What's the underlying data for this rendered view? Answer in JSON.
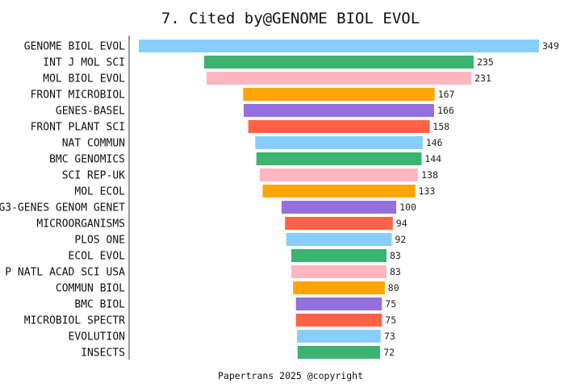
{
  "chart_data": {
    "type": "bar",
    "orientation": "horizontal-funnel",
    "title": "7. Cited by@GENOME BIOL EVOL",
    "footer": "Papertrans 2025 @copyright",
    "categories": [
      "GENOME BIOL EVOL",
      "INT J MOL SCI",
      "MOL BIOL EVOL",
      "FRONT MICROBIOL",
      "GENES-BASEL",
      "FRONT PLANT SCI",
      "NAT COMMUN",
      "BMC GENOMICS",
      "SCI REP-UK",
      "MOL ECOL",
      "G3-GENES GENOM GENET",
      "MICROORGANISMS",
      "PLOS ONE",
      "ECOL EVOL",
      "P NATL ACAD SCI USA",
      "COMMUN BIOL",
      "BMC BIOL",
      "MICROBIOL SPECTR",
      "EVOLUTION",
      "INSECTS"
    ],
    "values": [
      349,
      235,
      231,
      167,
      166,
      158,
      146,
      144,
      138,
      133,
      100,
      94,
      92,
      83,
      83,
      80,
      75,
      75,
      73,
      72
    ],
    "colors": [
      "#87cefa",
      "#3cb371",
      "#ffb6c1",
      "#ffa500",
      "#9370db",
      "#ff6347"
    ],
    "xlim": [
      0,
      349
    ]
  }
}
